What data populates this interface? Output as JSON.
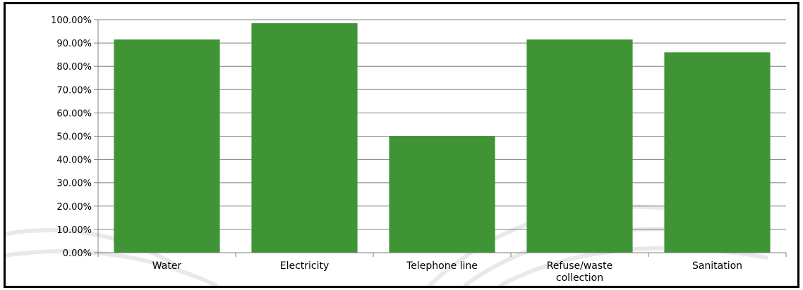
{
  "chart_data": {
    "type": "bar",
    "title": "",
    "xlabel": "",
    "ylabel": "",
    "categories": [
      "Water",
      "Electricity",
      "Telephone line",
      "Refuse/waste collection",
      "Sanitation"
    ],
    "category_label_lines": [
      [
        "Water"
      ],
      [
        "Electricity"
      ],
      [
        "Telephone line"
      ],
      [
        "Refuse/waste",
        "collection"
      ],
      [
        "Sanitation"
      ]
    ],
    "series": [
      {
        "values": [
          91.5,
          98.5,
          50.0,
          91.5,
          86.0
        ],
        "color": "#3f9535"
      }
    ],
    "ylim": [
      0,
      100
    ],
    "y_ticks": [
      0,
      10,
      20,
      30,
      40,
      50,
      60,
      70,
      80,
      90,
      100
    ],
    "y_tick_labels": [
      "0.00%",
      "10.00%",
      "20.00%",
      "30.00%",
      "40.00%",
      "50.00%",
      "60.00%",
      "70.00%",
      "80.00%",
      "90.00%",
      "100.00%"
    ],
    "grid": true,
    "legend": "none",
    "colors": {
      "bar": "#3f9535",
      "gridline": "#7f7f7f",
      "axis": "#7f7f7f",
      "frame": "#000000"
    }
  }
}
